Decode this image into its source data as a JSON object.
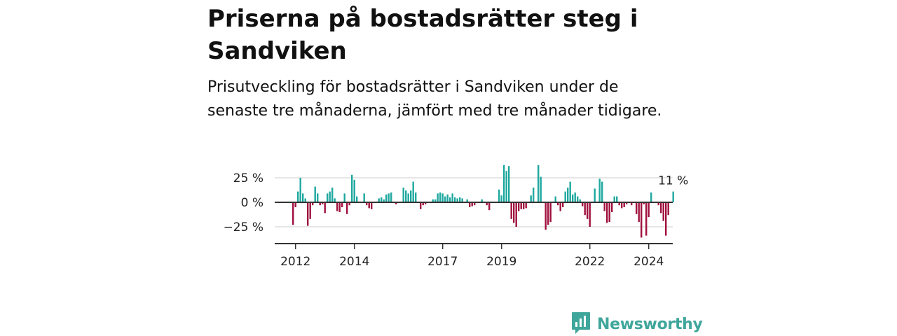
{
  "title": "Priserna på bostadsrätter steg i Sandviken",
  "subtitle": "Prisutveckling för bostadsrätter i Sandviken under de senaste tre månaderna, jämfört med tre månader tidigare.",
  "brand": {
    "name": "Newsworthy",
    "logo_icon": "newsworthy-logo-icon",
    "color": "#3fa69b"
  },
  "chart_data": {
    "type": "bar",
    "x_start": "2011-12",
    "y_tick_labels": [
      "25 %",
      "0 %",
      "−25 %"
    ],
    "y_ticks": [
      25,
      0,
      -25
    ],
    "ylim": [
      -40,
      40
    ],
    "grid": true,
    "x_tick_labels": [
      "2012",
      "2014",
      "2017",
      "2019",
      "2022",
      "2024"
    ],
    "x_ticks": [
      "2012-01",
      "2014-01",
      "2017-01",
      "2019-01",
      "2022-01",
      "2024-01"
    ],
    "annotation": "11 %",
    "colors": {
      "positive": "#1fa89f",
      "negative": "#a0113e"
    },
    "values": [
      -23,
      -5,
      11,
      25,
      9,
      4,
      -24,
      -17,
      -3,
      16,
      9,
      -3,
      -2,
      -11,
      9,
      11,
      15,
      4,
      -9,
      -10,
      -5,
      9,
      -12,
      -3,
      28,
      23,
      6,
      0,
      0,
      9,
      -3,
      -6,
      -7,
      0,
      0,
      4,
      5,
      3,
      8,
      9,
      10,
      0,
      -2,
      0,
      0,
      15,
      12,
      9,
      12,
      21,
      10,
      0,
      -7,
      -3,
      -2,
      0,
      0,
      3,
      3,
      9,
      10,
      9,
      6,
      8,
      5,
      9,
      5,
      4,
      5,
      4,
      0,
      3,
      -5,
      -4,
      -3,
      0,
      0,
      3,
      0,
      -3,
      -8,
      0,
      0,
      0,
      13,
      7,
      38,
      32,
      37,
      -17,
      -21,
      -25,
      -9,
      -7,
      -7,
      -6,
      0,
      7,
      15,
      0,
      38,
      26,
      0,
      -28,
      -23,
      -20,
      0,
      6,
      -3,
      -9,
      -5,
      11,
      15,
      21,
      8,
      10,
      6,
      3,
      -4,
      -13,
      -17,
      -25,
      0,
      14,
      0,
      24,
      21,
      -9,
      -21,
      -20,
      -10,
      6,
      6,
      -3,
      -6,
      -5,
      -2,
      0,
      -3,
      0,
      -12,
      -20,
      -36,
      -2,
      -34,
      -15,
      10,
      0,
      0,
      -3,
      -11,
      -19,
      -34,
      -13,
      0,
      11
    ]
  }
}
